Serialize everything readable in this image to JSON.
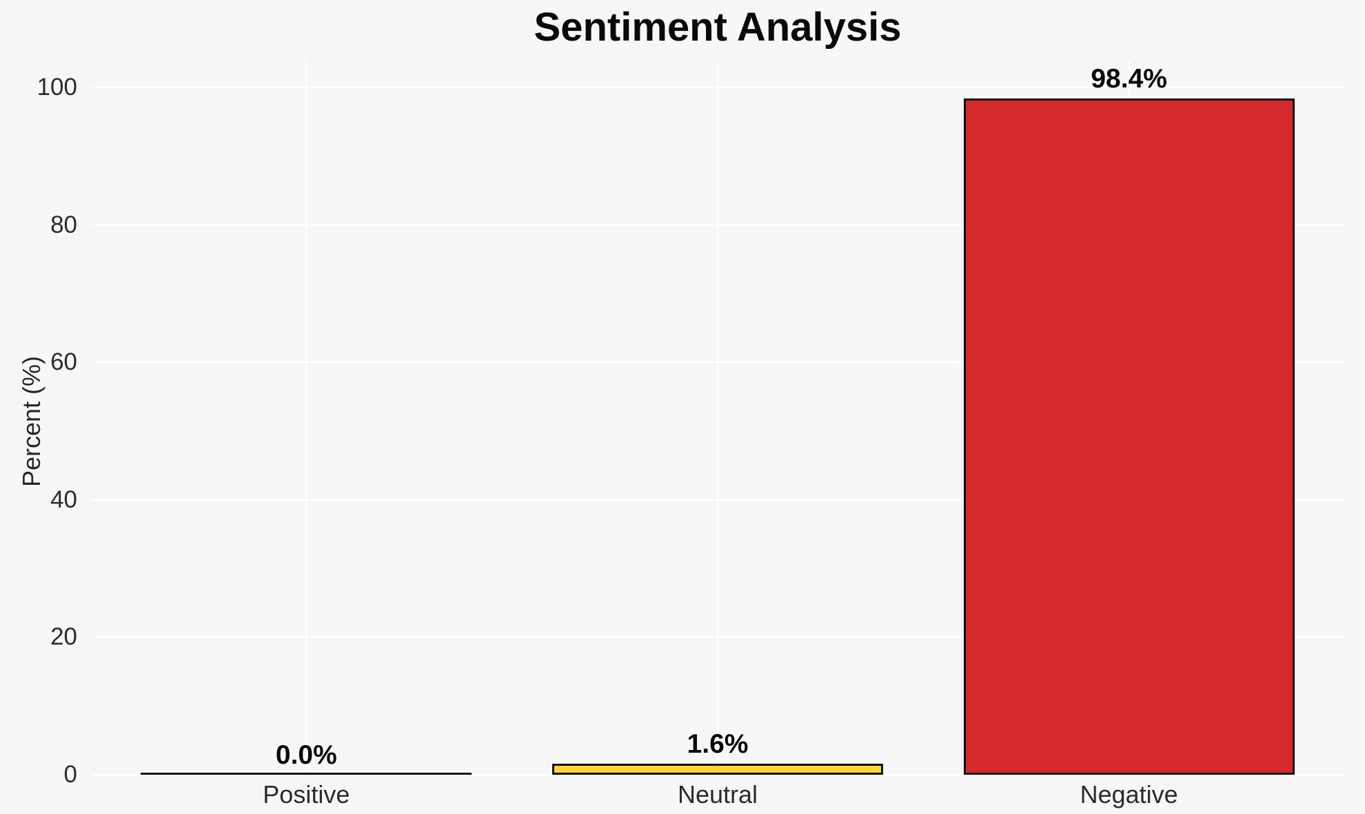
{
  "chart_data": {
    "type": "bar",
    "title": "Sentiment Analysis",
    "categories": [
      "Positive",
      "Neutral",
      "Negative"
    ],
    "values": [
      0.0,
      1.6,
      98.4
    ],
    "value_labels": [
      "0.0%",
      "1.6%",
      "98.4%"
    ],
    "bar_colors": [
      null,
      "#fdd43a",
      "#d42a2b"
    ],
    "bar_edge_color": "#111111",
    "xlabel": "",
    "ylabel": "Percent (%)",
    "ylim": [
      0,
      104
    ],
    "yticks": [
      0,
      20,
      40,
      60,
      80,
      100
    ],
    "grid": "on",
    "grid_color": "#ffffff",
    "background_color": "#f7f7f8",
    "legend": "none"
  }
}
